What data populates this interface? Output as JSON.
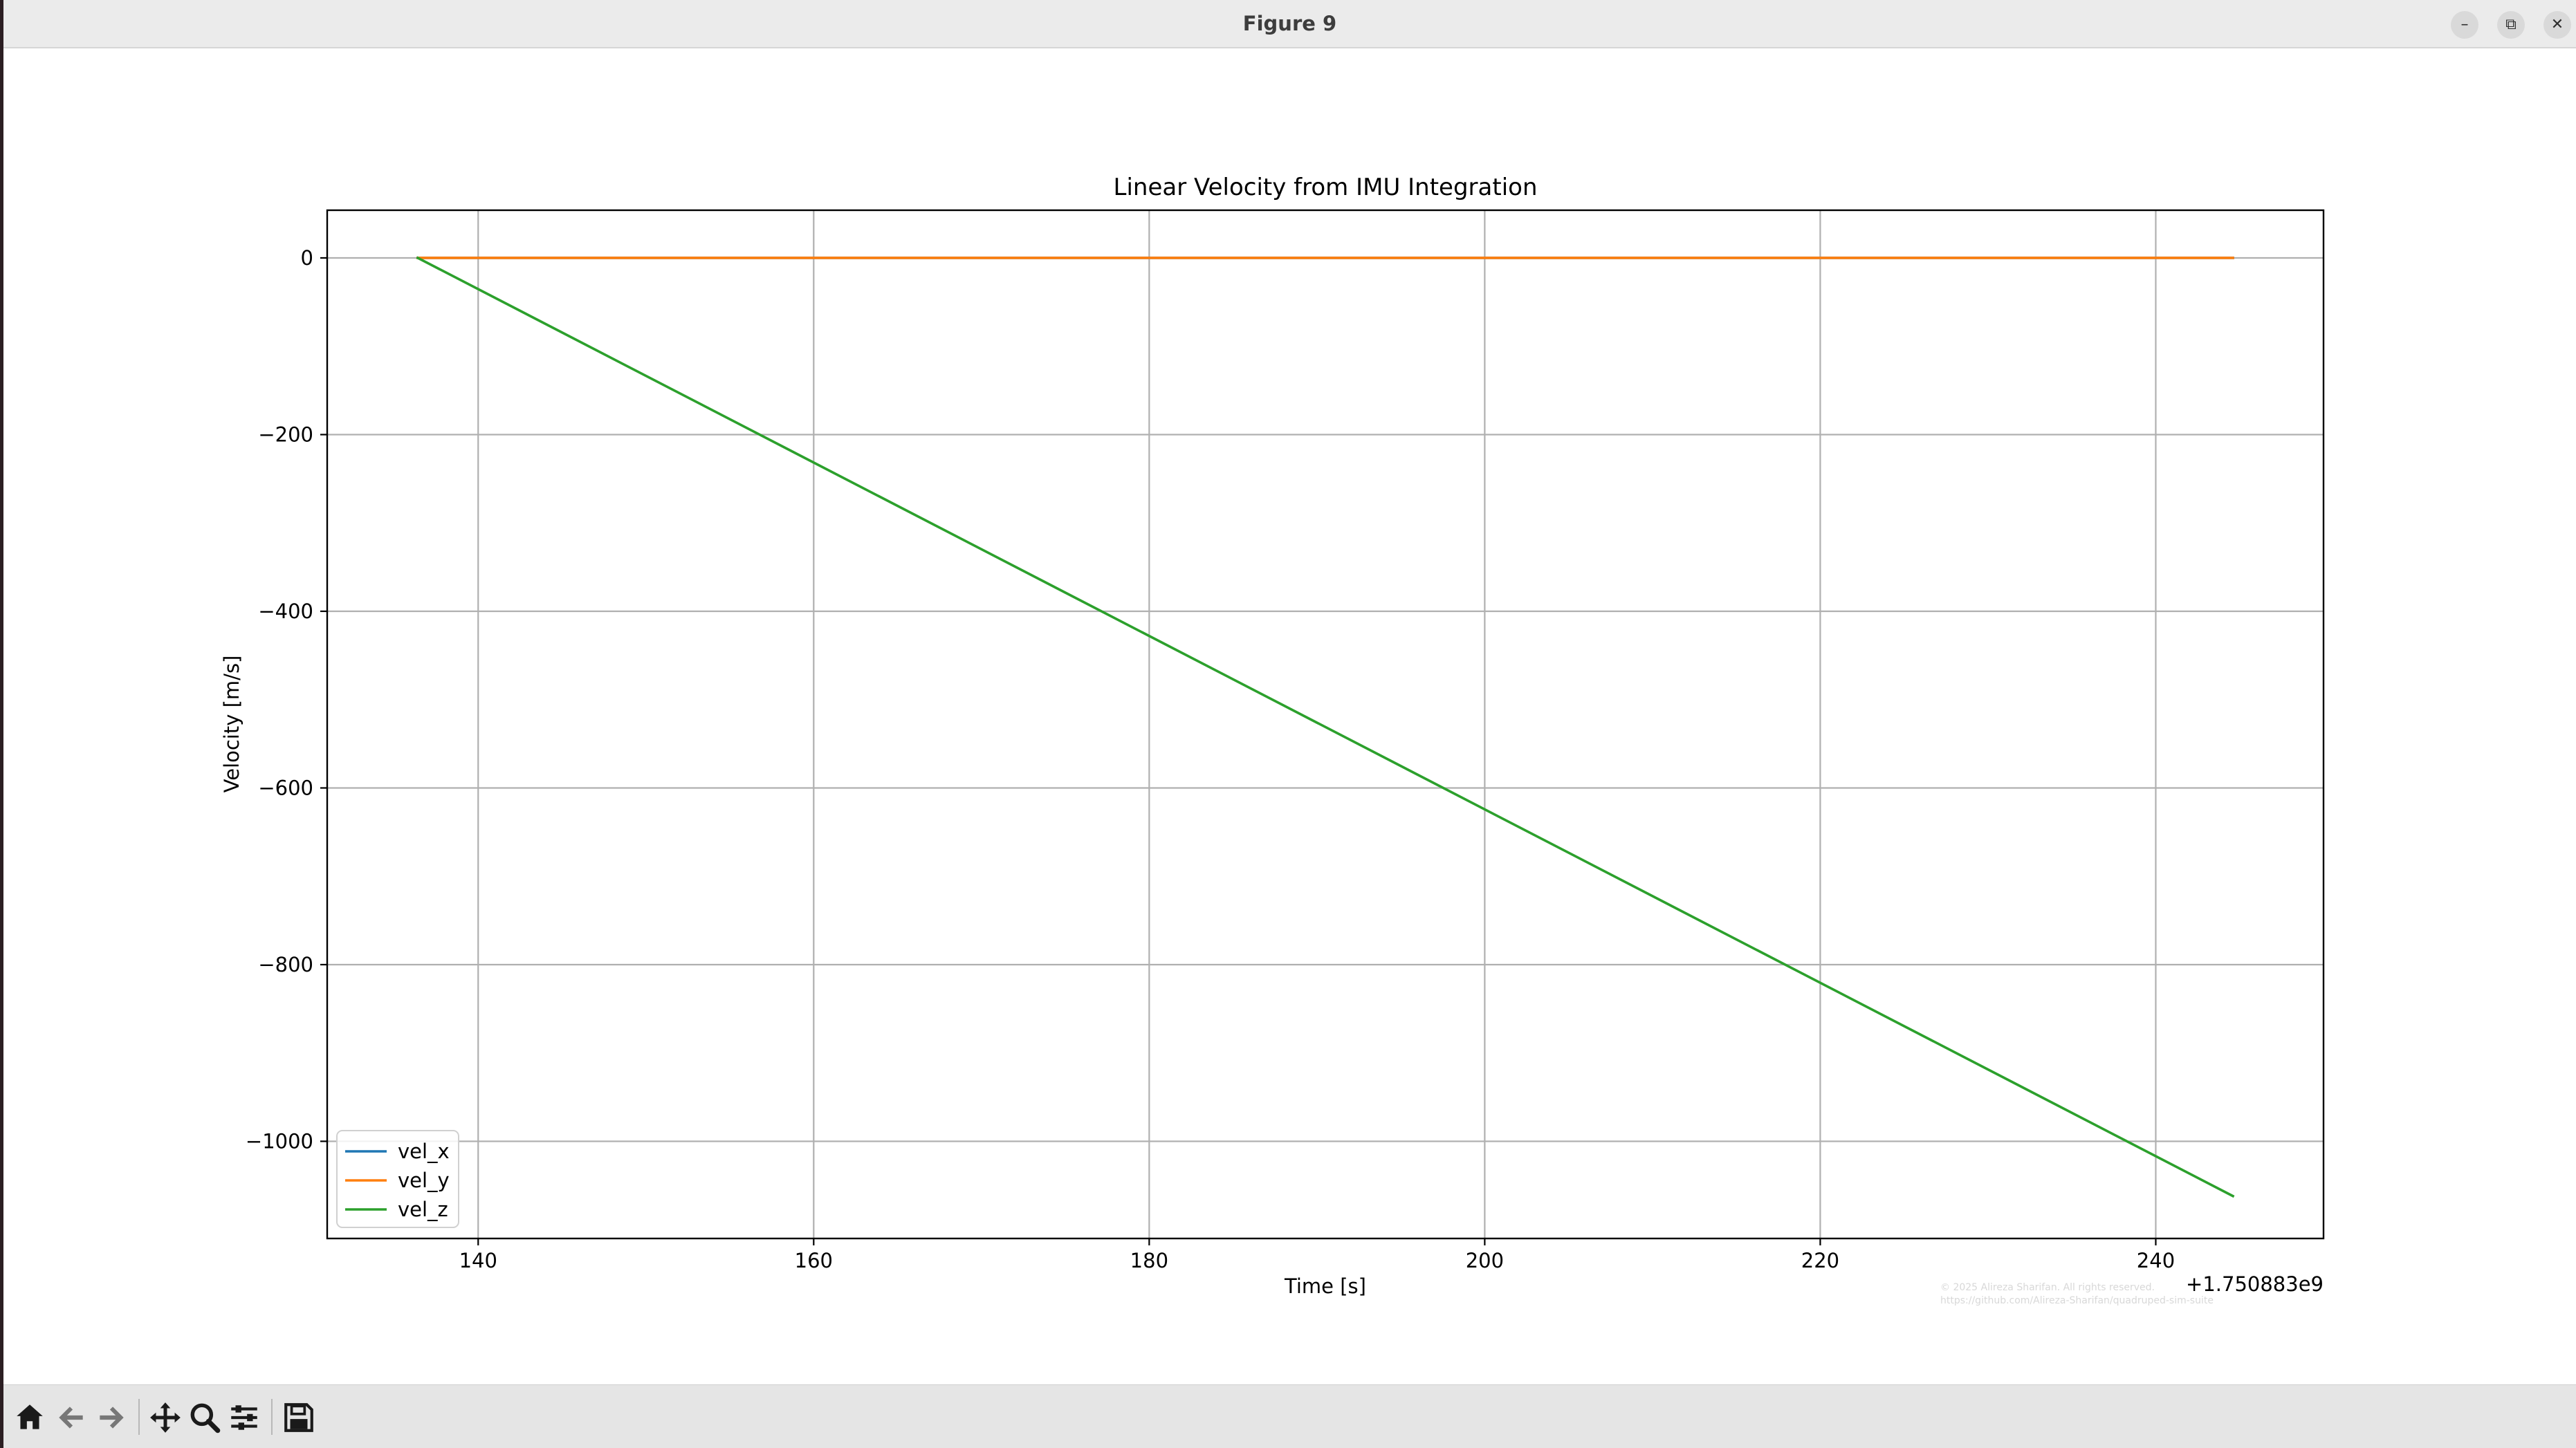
{
  "window": {
    "title": "Figure 9",
    "minimize_glyph": "–",
    "restore_glyph": "⧉",
    "close_glyph": "✕"
  },
  "toolbar": {
    "items": [
      {
        "name": "home-icon",
        "label": "Home"
      },
      {
        "name": "back-icon",
        "label": "Back"
      },
      {
        "name": "forward-icon",
        "label": "Forward"
      },
      {
        "name": "pan-icon",
        "label": "Pan"
      },
      {
        "name": "zoom-icon",
        "label": "Zoom"
      },
      {
        "name": "configure-subplots-icon",
        "label": "Configure subplots"
      },
      {
        "name": "save-icon",
        "label": "Save"
      }
    ]
  },
  "chart_data": {
    "type": "line",
    "title": "Linear Velocity from IMU Integration",
    "xlabel": "Time [s]",
    "ylabel": "Velocity [m/s]",
    "x_offset_label": "+1.750883e9",
    "xlim": [
      131,
      250
    ],
    "ylim": [
      -1110,
      54
    ],
    "xticks": [
      140,
      160,
      180,
      200,
      220,
      240
    ],
    "yticks": [
      0,
      -200,
      -400,
      -600,
      -800,
      -1000
    ],
    "xtick_labels": [
      "140",
      "160",
      "180",
      "200",
      "220",
      "240"
    ],
    "ytick_labels": [
      "0",
      "−200",
      "−400",
      "−600",
      "−800",
      "−1000"
    ],
    "grid": true,
    "legend_position": "lower-left",
    "series": [
      {
        "name": "vel_x",
        "color": "#1f77b4",
        "x": [
          136.4,
          244.6
        ],
        "y": [
          0,
          0
        ]
      },
      {
        "name": "vel_y",
        "color": "#ff7f0e",
        "x": [
          136.4,
          244.6
        ],
        "y": [
          0,
          0
        ]
      },
      {
        "name": "vel_z",
        "color": "#2ca02c",
        "x": [
          136.4,
          244.6
        ],
        "y": [
          0,
          -1062
        ]
      }
    ],
    "watermark": [
      "© 2025 Alireza Sharifan. All rights reserved.",
      "https://github.com/Alireza-Sharifan/quadruped-sim-suite"
    ]
  }
}
